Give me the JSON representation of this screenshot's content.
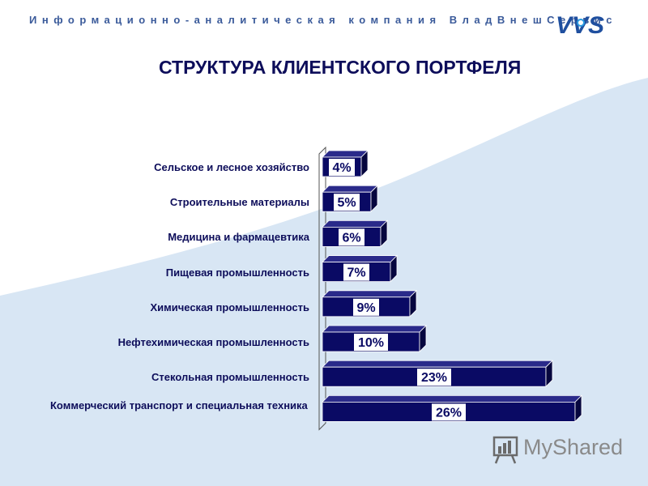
{
  "header": {
    "company_line": "Информационно-аналитическая компания ВладВнешСервис",
    "logo_text": "VVS"
  },
  "slide": {
    "title": "СТРУКТУРА КЛИЕНТСКОГО ПОРТФЕЛЯ"
  },
  "chart_data": {
    "type": "bar",
    "orientation": "horizontal",
    "style": "3d",
    "categories": [
      "Сельское и лесное хозяйство",
      "Строительные материалы",
      "Медицина и фармацевтика",
      "Пищевая промышленность",
      "Химическая промышленность",
      "Нефтехимическая промышленность",
      "Стекольная промышленность",
      "Коммерческий транспорт и специальная техника"
    ],
    "values": [
      4,
      5,
      6,
      7,
      9,
      10,
      23,
      26
    ],
    "value_labels": [
      "4%",
      "5%",
      "6%",
      "7%",
      "9%",
      "10%",
      "23%",
      "26%"
    ],
    "unit": "%",
    "xlim": [
      0,
      26
    ],
    "bar_color": "#0a0a64",
    "grid": false,
    "legend": "none"
  },
  "watermark": {
    "text": "MyShared"
  }
}
